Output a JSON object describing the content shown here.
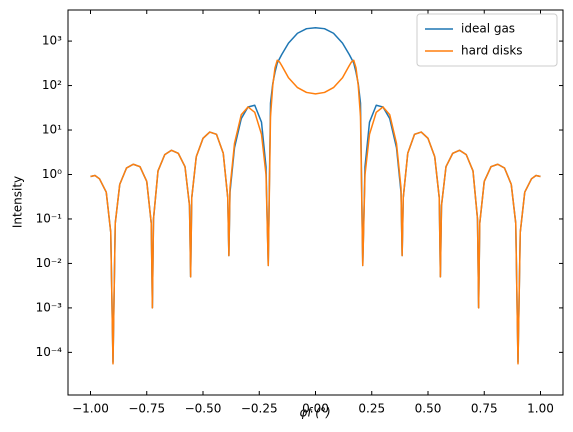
{
  "chart_data": {
    "type": "line",
    "xlabel": "φf (°)",
    "ylabel": "Intensity",
    "x": [
      -1.0,
      -0.98,
      -0.96,
      -0.93,
      -0.91,
      -0.9,
      -0.89,
      -0.87,
      -0.84,
      -0.81,
      -0.78,
      -0.75,
      -0.73,
      -0.725,
      -0.72,
      -0.7,
      -0.67,
      -0.64,
      -0.61,
      -0.58,
      -0.56,
      -0.555,
      -0.55,
      -0.53,
      -0.5,
      -0.47,
      -0.44,
      -0.41,
      -0.39,
      -0.385,
      -0.38,
      -0.36,
      -0.33,
      -0.3,
      -0.27,
      -0.24,
      -0.22,
      -0.21,
      -0.2,
      -0.19,
      -0.18,
      -0.17,
      -0.16,
      -0.15,
      -0.12,
      -0.08,
      -0.04,
      0,
      0.04,
      0.08,
      0.12,
      0.15,
      0.16,
      0.17,
      0.18,
      0.19,
      0.2,
      0.21,
      0.22,
      0.24,
      0.27,
      0.3,
      0.33,
      0.36,
      0.38,
      0.385,
      0.39,
      0.41,
      0.44,
      0.47,
      0.5,
      0.53,
      0.55,
      0.555,
      0.56,
      0.58,
      0.61,
      0.64,
      0.67,
      0.7,
      0.72,
      0.725,
      0.73,
      0.75,
      0.78,
      0.81,
      0.84,
      0.87,
      0.89,
      0.9,
      0.91,
      0.93,
      0.96,
      0.98,
      1.0
    ],
    "series": [
      {
        "name": "ideal gas",
        "color": "#1f77b4",
        "values": [
          0.9,
          0.95,
          0.8,
          0.4,
          0.05,
          6e-05,
          0.08,
          0.6,
          1.4,
          1.7,
          1.5,
          0.7,
          0.08,
          0.001,
          0.1,
          1.2,
          2.8,
          3.5,
          3,
          1.5,
          0.2,
          0.005,
          0.3,
          2.5,
          6.5,
          9,
          8,
          3,
          0.3,
          0.015,
          0.4,
          4,
          18,
          33,
          36,
          15,
          1.5,
          0.009,
          40,
          110,
          200,
          320,
          400,
          500,
          900,
          1500,
          1900,
          2000,
          1900,
          1500,
          900,
          500,
          400,
          320,
          200,
          110,
          40,
          0.009,
          1.5,
          15,
          36,
          33,
          18,
          4,
          0.4,
          0.015,
          0.3,
          3,
          8,
          9,
          6.5,
          2.5,
          0.3,
          0.005,
          0.2,
          1.5,
          3,
          3.5,
          2.8,
          1.2,
          0.1,
          0.001,
          0.08,
          0.7,
          1.5,
          1.7,
          1.4,
          0.6,
          0.08,
          6e-05,
          0.05,
          0.4,
          0.8,
          0.95,
          0.9
        ]
      },
      {
        "name": "hard disks",
        "color": "#ff7f0e",
        "values": [
          0.9,
          0.95,
          0.8,
          0.4,
          0.05,
          5.5e-05,
          0.08,
          0.6,
          1.4,
          1.7,
          1.5,
          0.7,
          0.08,
          0.001,
          0.1,
          1.2,
          2.8,
          3.5,
          3,
          1.5,
          0.2,
          0.005,
          0.3,
          2.5,
          6.5,
          9,
          8,
          3,
          0.3,
          0.015,
          0.5,
          5,
          22,
          33,
          25,
          8,
          1,
          0.009,
          20,
          100,
          250,
          370,
          340,
          280,
          150,
          90,
          70,
          65,
          70,
          90,
          150,
          280,
          340,
          370,
          250,
          100,
          20,
          0.009,
          1,
          8,
          25,
          33,
          22,
          5,
          0.5,
          0.015,
          0.3,
          3,
          8,
          9,
          6.5,
          2.5,
          0.3,
          0.005,
          0.2,
          1.5,
          3,
          3.5,
          2.8,
          1.2,
          0.1,
          0.001,
          0.08,
          0.7,
          1.5,
          1.7,
          1.4,
          0.6,
          0.08,
          5.5e-05,
          0.05,
          0.4,
          0.8,
          0.95,
          0.9
        ]
      }
    ],
    "xlim": [
      -1.1,
      1.1
    ],
    "xticks": [
      {
        "value": -1,
        "label": "−1.00"
      },
      {
        "value": -0.75,
        "label": "−0.75"
      },
      {
        "value": -0.5,
        "label": "−0.50"
      },
      {
        "value": -0.25,
        "label": "−0.25"
      },
      {
        "value": 0,
        "label": "0.00"
      },
      {
        "value": 0.25,
        "label": "0.25"
      },
      {
        "value": 0.5,
        "label": "0.50"
      },
      {
        "value": 0.75,
        "label": "0.75"
      },
      {
        "value": 1,
        "label": "1.00"
      }
    ],
    "ylim": [
      1.1e-05,
      5000
    ],
    "log_y": true,
    "yticks": [
      {
        "value": 0.0001,
        "label": "10⁻⁴"
      },
      {
        "value": 0.001,
        "label": "10⁻³"
      },
      {
        "value": 0.01,
        "label": "10⁻²"
      },
      {
        "value": 0.1,
        "label": "10⁻¹"
      },
      {
        "value": 1,
        "label": "10⁰"
      },
      {
        "value": 10,
        "label": "10¹"
      },
      {
        "value": 100,
        "label": "10²"
      },
      {
        "value": 1000,
        "label": "10³"
      }
    ],
    "legend": "upper right"
  }
}
